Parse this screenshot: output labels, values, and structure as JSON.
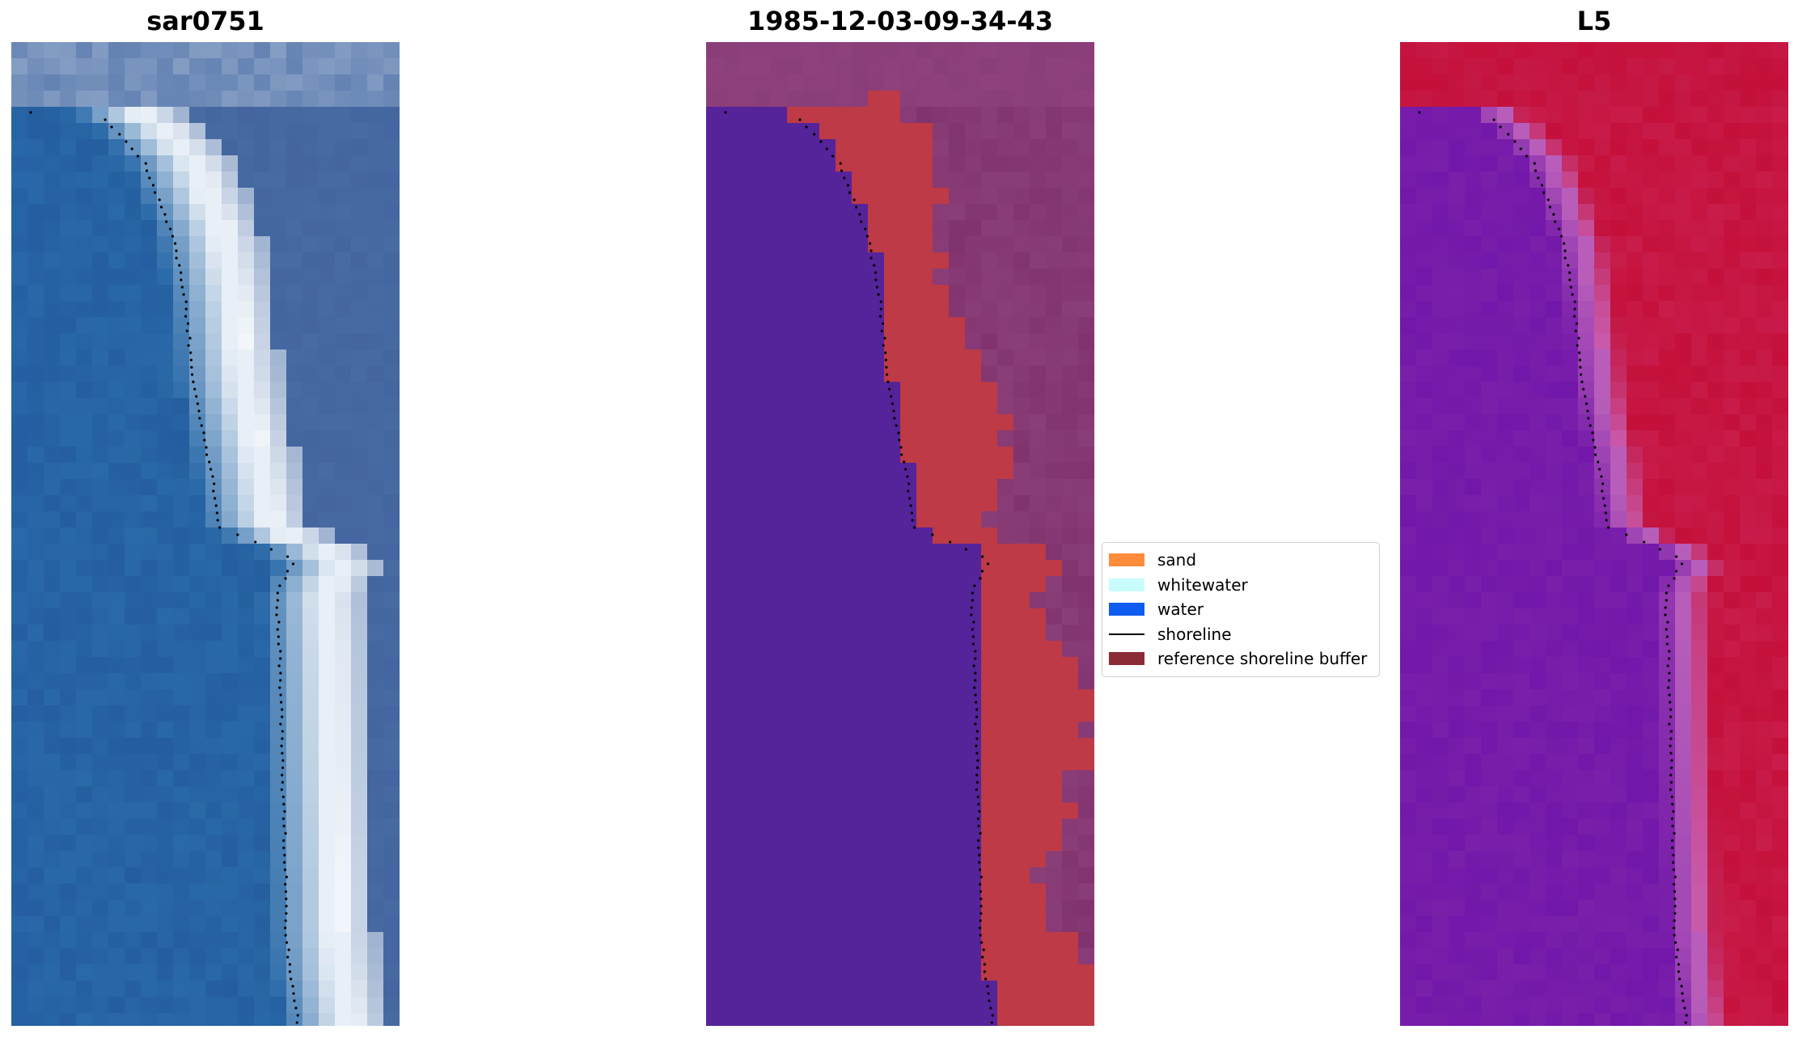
{
  "panels": [
    {
      "title": "sar0751",
      "style": "rgb"
    },
    {
      "title": "1985-12-03-09-34-43",
      "style": "classified"
    },
    {
      "title": "L5",
      "style": "index"
    }
  ],
  "legend": {
    "placement": "center",
    "items": [
      {
        "label": "sand",
        "color": "#ff8c3a",
        "kind": "patch"
      },
      {
        "label": "whitewater",
        "color": "#c8fcfc",
        "kind": "patch"
      },
      {
        "label": "water",
        "color": "#0f5cf0",
        "kind": "patch"
      },
      {
        "label": "shoreline",
        "color": "#000000",
        "kind": "line"
      },
      {
        "label": "reference shoreline buffer",
        "color": "#8b2b35",
        "kind": "patch"
      }
    ]
  },
  "colors": {
    "rgb_water": "#2a6aa8",
    "rgb_surf": "#f2f6fa",
    "rgb_land": "#4a6ea6",
    "class_water": "#55239a",
    "class_buffer": "#bd3a46",
    "class_land": "#8a3e78",
    "index_water": "#7a1faa",
    "index_land": "#c4103a",
    "shoreline": "#000000"
  }
}
